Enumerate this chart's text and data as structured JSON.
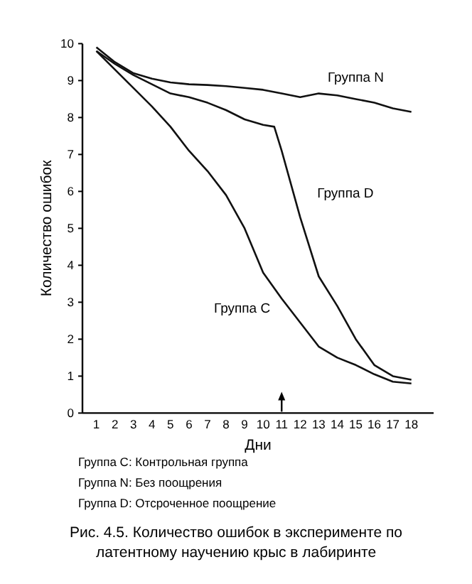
{
  "chart_data": {
    "type": "line",
    "title": "Рис. 4.5. Количество ошибок в эксперименте по латентному научению крыс в лабиринте",
    "xlabel": "Дни",
    "ylabel": "Количество ошибок",
    "xlim": [
      0.25,
      19.2
    ],
    "xticks": [
      1,
      2,
      3,
      4,
      5,
      6,
      7,
      8,
      9,
      10,
      11,
      12,
      13,
      14,
      15,
      16,
      17,
      18
    ],
    "ylim": [
      0,
      10
    ],
    "yticks": [
      0,
      1,
      2,
      3,
      4,
      5,
      6,
      7,
      8,
      9,
      10
    ],
    "grid": false,
    "legend": false,
    "marker": "none",
    "line_style": "solid",
    "series": [
      {
        "name": "Группа N",
        "color": "#111111",
        "x": [
          1,
          2,
          3,
          4,
          5,
          6,
          7,
          8,
          9,
          10,
          11,
          12,
          13,
          14,
          15,
          16,
          17,
          18
        ],
        "values": [
          9.9,
          9.5,
          9.2,
          9.05,
          8.95,
          8.9,
          8.88,
          8.85,
          8.8,
          8.75,
          8.65,
          8.55,
          8.65,
          8.6,
          8.5,
          8.4,
          8.25,
          8.15
        ]
      },
      {
        "name": "Группа D",
        "color": "#111111",
        "x": [
          1,
          2,
          3,
          4,
          5,
          6,
          7,
          8,
          9,
          10,
          10.6,
          11,
          12,
          13,
          14,
          15,
          16,
          17,
          18
        ],
        "values": [
          9.8,
          9.45,
          9.15,
          8.9,
          8.65,
          8.55,
          8.4,
          8.2,
          7.95,
          7.8,
          7.75,
          7.1,
          5.3,
          3.7,
          2.9,
          2.0,
          1.3,
          1.0,
          0.9
        ]
      },
      {
        "name": "Группа C",
        "color": "#111111",
        "x": [
          1,
          2,
          3,
          4,
          5,
          6,
          7,
          8,
          9,
          10,
          11,
          12,
          13,
          14,
          15,
          16,
          17,
          18
        ],
        "values": [
          9.8,
          9.3,
          8.8,
          8.3,
          7.75,
          7.1,
          6.55,
          5.9,
          5.0,
          3.8,
          3.1,
          2.45,
          1.8,
          1.5,
          1.3,
          1.05,
          0.85,
          0.8
        ]
      }
    ],
    "annotations": [
      "Группа C: Контрольная группа",
      "Группа N: Без поощрения",
      "Группа D: Отсроченное поощрение"
    ]
  }
}
